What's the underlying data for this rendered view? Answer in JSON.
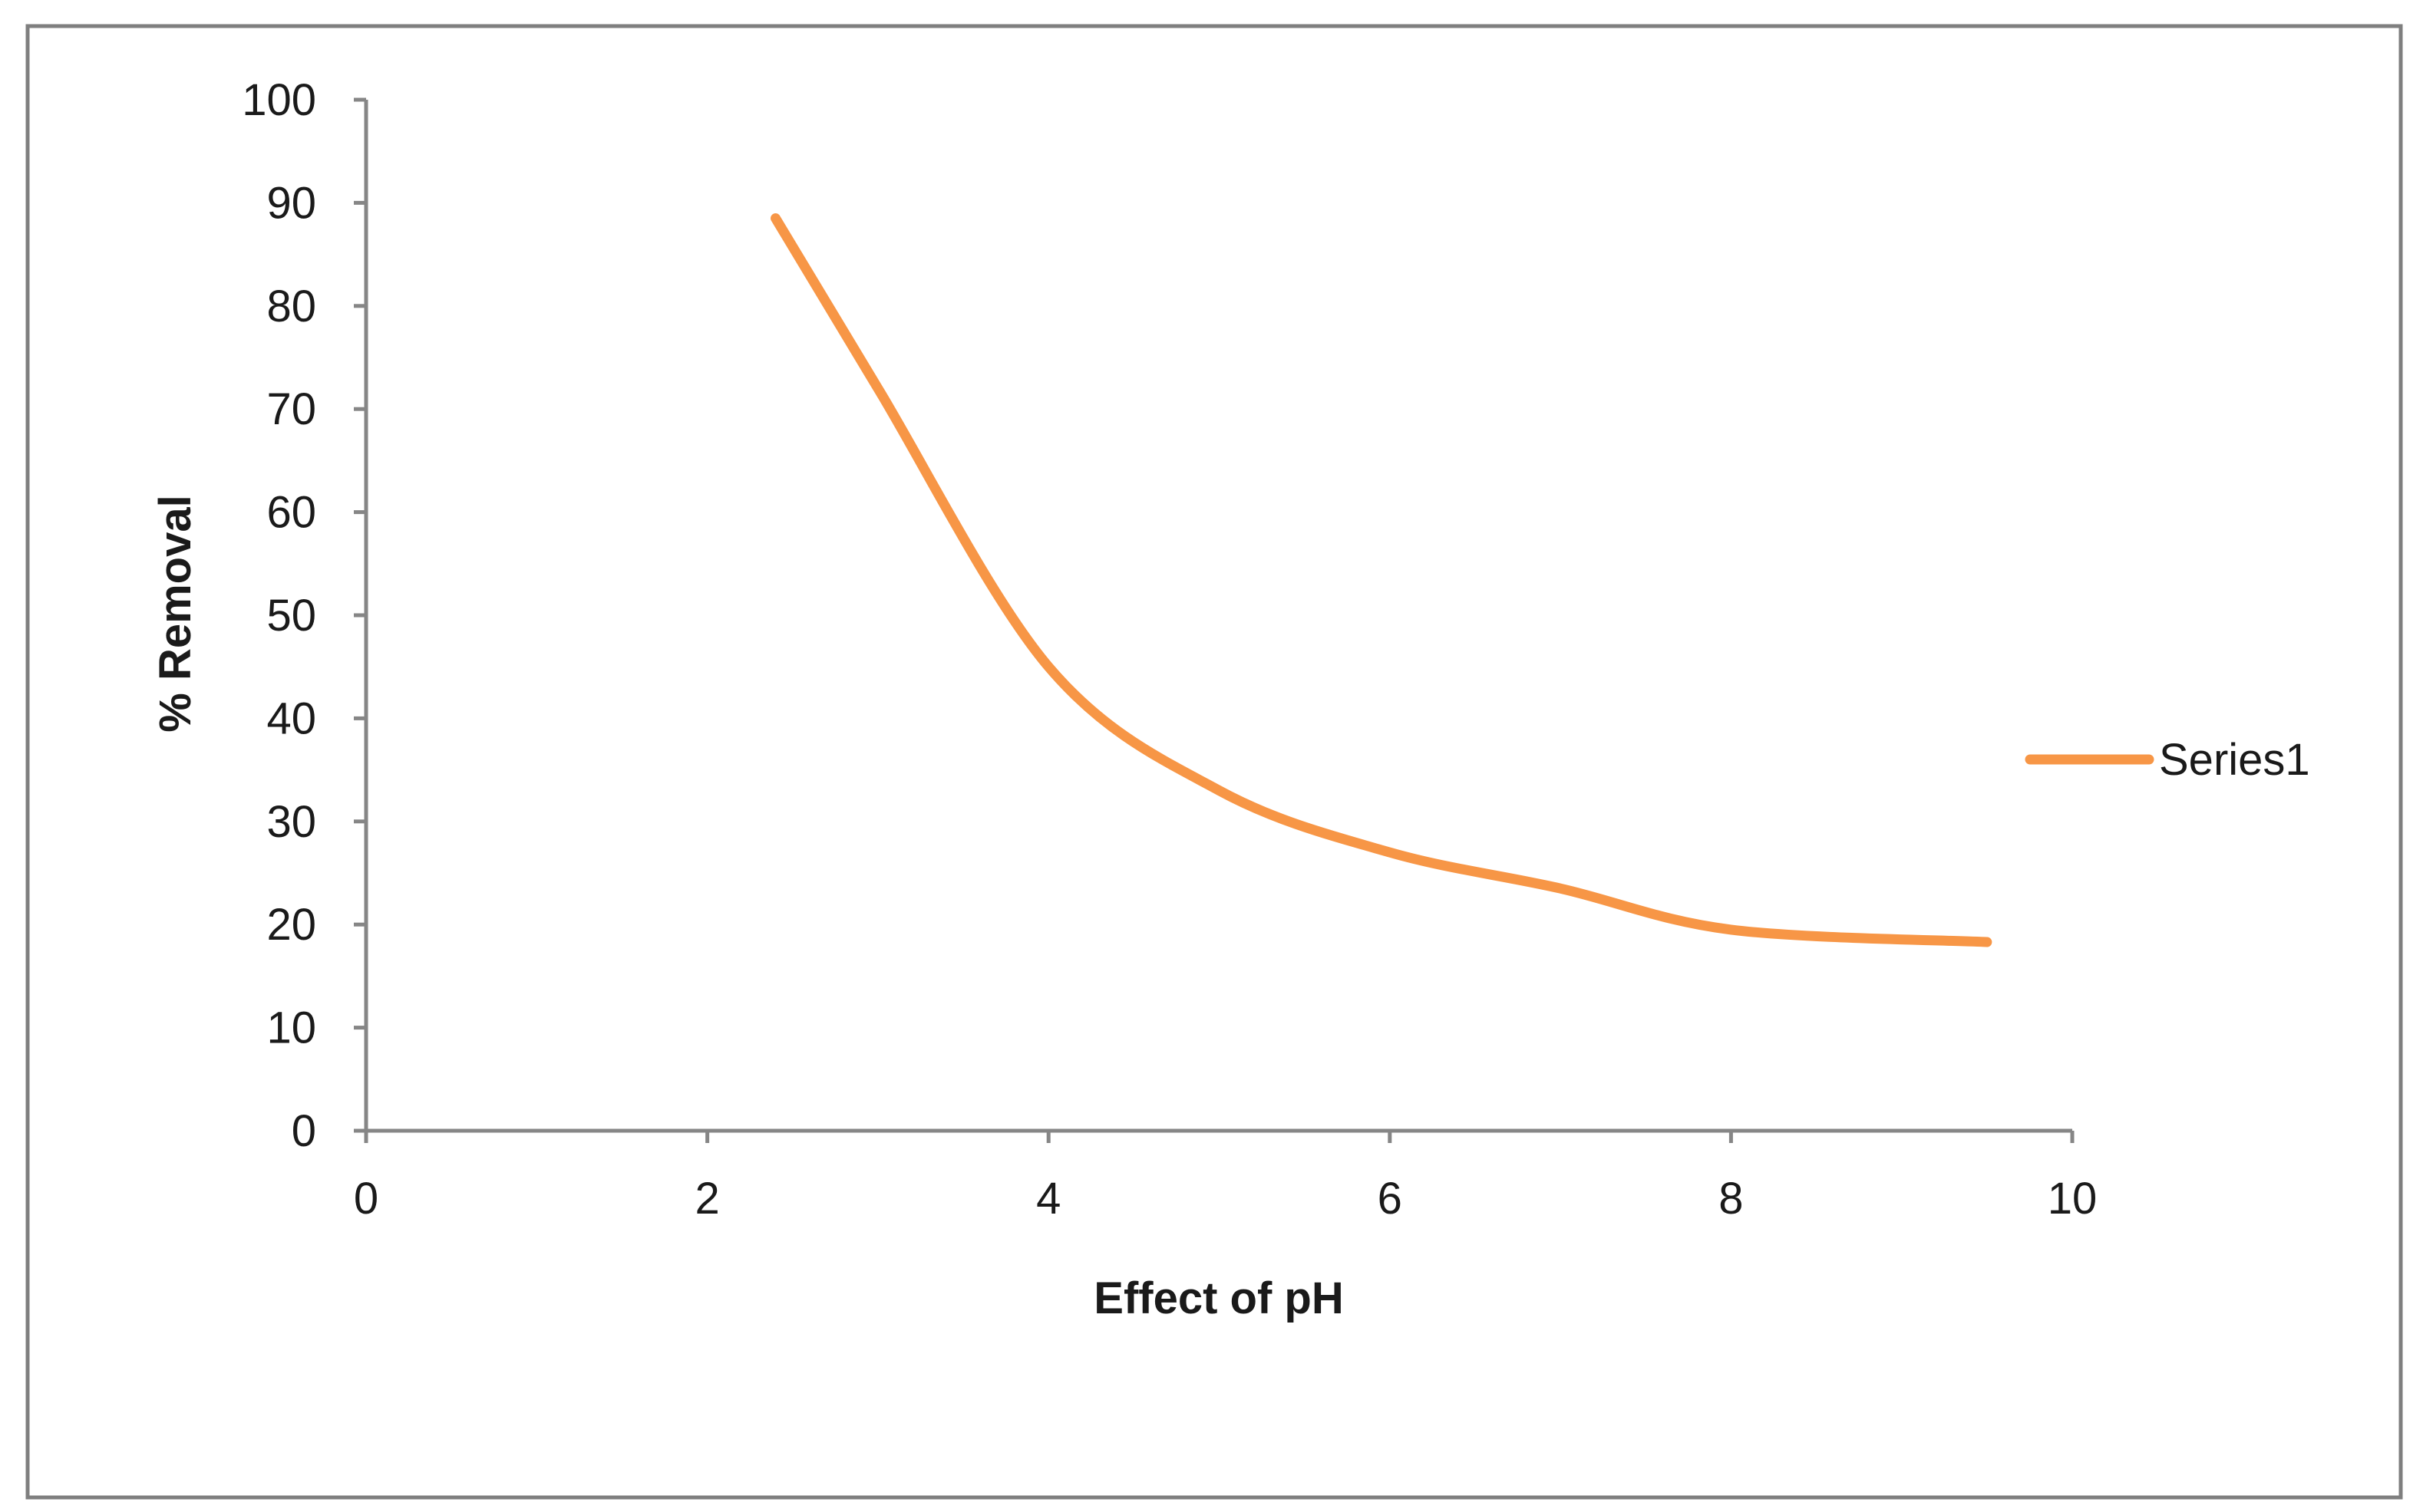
{
  "chart_data": {
    "type": "line",
    "xlabel": "Effect of pH",
    "ylabel": "% Removal",
    "xlim": [
      0,
      10
    ],
    "ylim": [
      0,
      100
    ],
    "x_ticks": [
      0,
      2,
      4,
      6,
      8,
      10
    ],
    "y_ticks": [
      0,
      10,
      20,
      30,
      40,
      50,
      60,
      70,
      80,
      90,
      100
    ],
    "grid": false,
    "smooth": true,
    "legend": {
      "placement": "right",
      "entries": [
        "Series1"
      ]
    },
    "series": [
      {
        "name": "Series1",
        "color": "#f79646",
        "x": [
          2.4,
          3.0,
          4.0,
          5.0,
          6.0,
          7.0,
          8.0,
          9.5
        ],
        "y": [
          88.5,
          72,
          45,
          33,
          27,
          23.5,
          19.5,
          18.3
        ]
      }
    ]
  },
  "colors": {
    "background": "#ffffff",
    "frame": "#7f7f7f",
    "axis": "#868686",
    "text": "#1a1a1a"
  }
}
